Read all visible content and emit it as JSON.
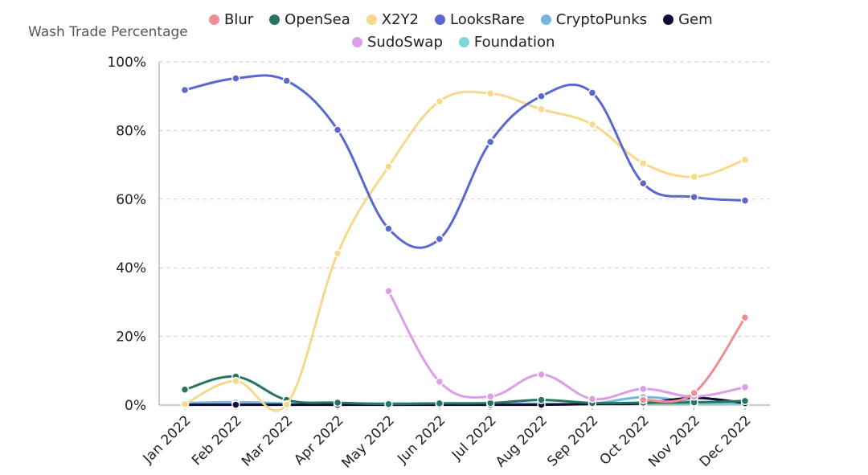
{
  "chart_data": {
    "type": "line",
    "title": "",
    "xlabel": "",
    "ylabel": "Wash Trade Percentage",
    "ylim": [
      0,
      100
    ],
    "yticks": [
      "0%",
      "20%",
      "40%",
      "60%",
      "80%",
      "100%"
    ],
    "ytick_values": [
      0,
      20,
      40,
      60,
      80,
      100
    ],
    "grid": "horizontal-dashed",
    "legend_placement": "top",
    "categories": [
      "Jan 2022",
      "Feb 2022",
      "Mar 2022",
      "Apr 2022",
      "May 2022",
      "Jun 2022",
      "Jul 2022",
      "Aug 2022",
      "Sep 2022",
      "Oct 2022",
      "Nov 2022",
      "Dec 2022"
    ],
    "series": [
      {
        "name": "Blur",
        "color": "#ee8e93",
        "values": [
          null,
          null,
          null,
          null,
          null,
          null,
          null,
          null,
          null,
          1.5,
          3.5,
          25.5
        ]
      },
      {
        "name": "OpenSea",
        "color": "#257561",
        "values": [
          4.5,
          8.3,
          1.5,
          0.7,
          0.3,
          0.5,
          0.6,
          1.5,
          0.6,
          0.7,
          0.8,
          1.2
        ]
      },
      {
        "name": "X2Y2",
        "color": "#f6d98a",
        "values": [
          0.3,
          7.0,
          0.2,
          44.2,
          69.5,
          88.5,
          90.8,
          86.2,
          81.8,
          70.5,
          66.5,
          71.5
        ]
      },
      {
        "name": "LooksRare",
        "color": "#5a67d0",
        "values": [
          91.8,
          95.2,
          94.5,
          80.2,
          51.4,
          48.4,
          76.7,
          90.0,
          91.0,
          64.6,
          60.6,
          59.6
        ]
      },
      {
        "name": "CryptoPunks",
        "color": "#74b6e3",
        "values": [
          0.5,
          0.7,
          0.4,
          0.3,
          0.4,
          0.5,
          0.5,
          0.4,
          0.4,
          2.3,
          1.0,
          0.6
        ]
      },
      {
        "name": "Gem",
        "color": "#0d0b2e",
        "values": [
          0.1,
          0.1,
          0.1,
          0.1,
          0.1,
          0.1,
          0.1,
          0.1,
          0.3,
          0.5,
          2.1,
          0.6
        ]
      },
      {
        "name": "SudoSwap",
        "color": "#dc9ee8",
        "values": [
          null,
          null,
          null,
          null,
          33.2,
          6.8,
          2.5,
          8.9,
          1.8,
          4.7,
          2.5,
          5.2
        ]
      },
      {
        "name": "Foundation",
        "color": "#7fd6d4",
        "values": [
          0.6,
          0.9,
          0.5,
          0.4,
          0.5,
          0.4,
          0.3,
          0.4,
          0.3,
          0.4,
          0.4,
          0.3
        ]
      }
    ]
  },
  "legend": {
    "row1": [
      "Blur",
      "OpenSea",
      "X2Y2",
      "LooksRare",
      "CryptoPunks",
      "Gem"
    ],
    "row2": [
      "SudoSwap",
      "Foundation"
    ]
  }
}
